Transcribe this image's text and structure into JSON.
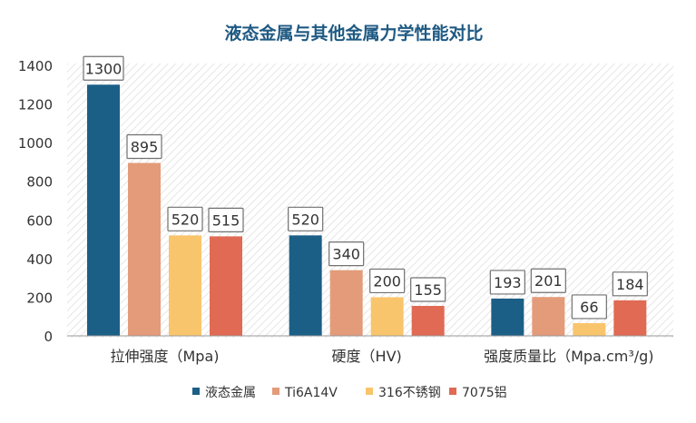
{
  "chart_data": {
    "type": "bar",
    "title": "液态金属与其他金属力学性能对比",
    "categories": [
      "拉伸强度（Mpa)",
      "硬度（HV)",
      "强度质量比（Mpa.cm³/g)"
    ],
    "series": [
      {
        "name": "液态金属",
        "color": "#1b5f86",
        "values": [
          1300,
          520,
          193
        ]
      },
      {
        "name": "Ti6A14V",
        "color": "#e39b79",
        "values": [
          895,
          340,
          201
        ]
      },
      {
        "name": "316不锈钢",
        "color": "#f9c56c",
        "values": [
          520,
          200,
          66
        ]
      },
      {
        "name": "7075铝",
        "color": "#e06a53",
        "values": [
          515,
          155,
          184
        ]
      }
    ],
    "ylim": [
      0,
      1400
    ],
    "yticks": [
      "0",
      "200",
      "400",
      "600",
      "800",
      "1000",
      "1200",
      "1400"
    ],
    "grid": false,
    "legend_position": "bottom",
    "colors": {
      "title": "#1f5a83",
      "label_border": "#6f6f6f",
      "hatch": "#ececec"
    }
  }
}
